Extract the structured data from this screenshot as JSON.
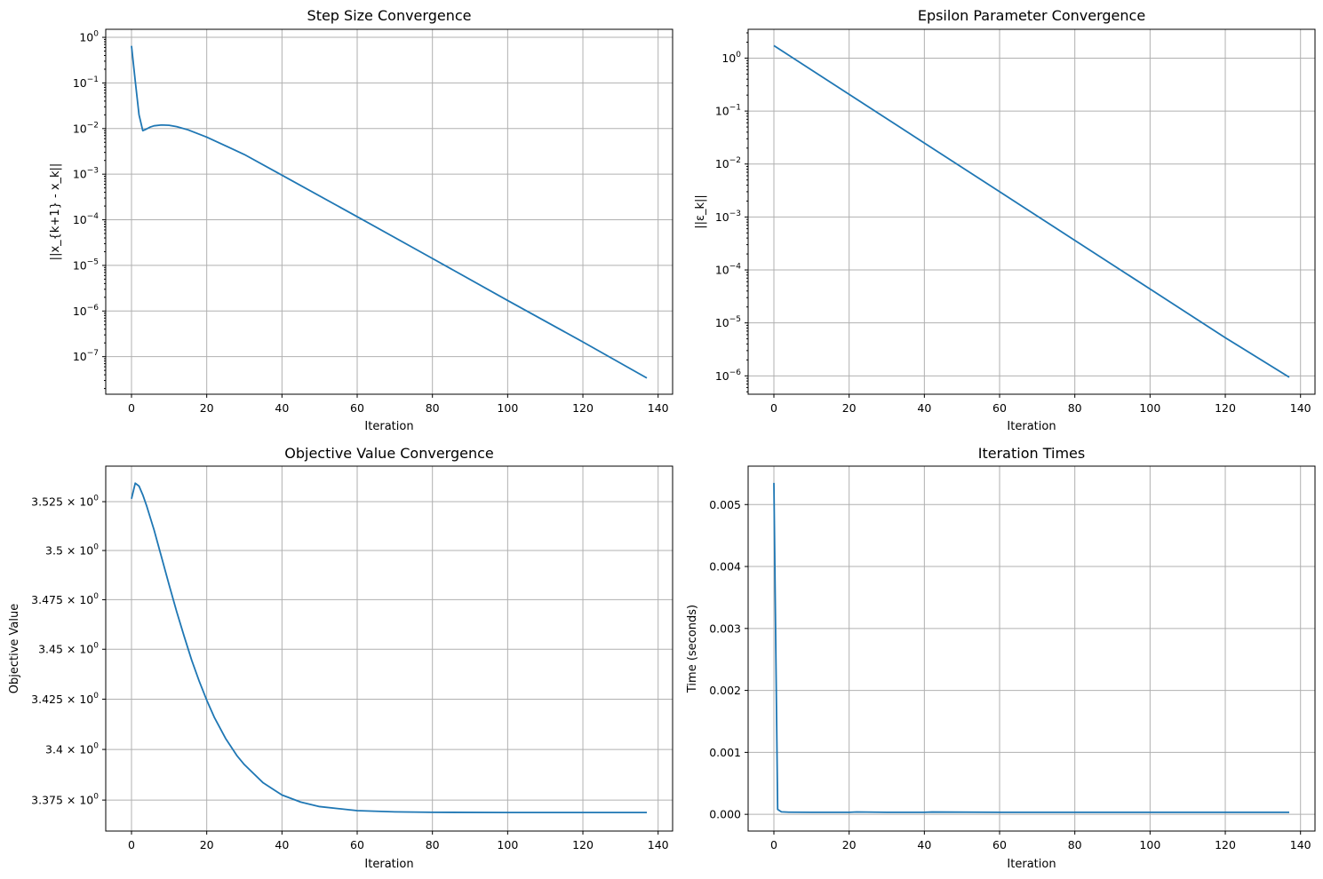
{
  "chart_data": [
    {
      "id": "step",
      "type": "line",
      "title": "Step Size Convergence",
      "xlabel": "Iteration",
      "ylabel": "||x_{k+1} - x_k||",
      "yscale": "log",
      "grid": true,
      "xlim": [
        -6.85,
        143.85
      ],
      "ylim": [
        1.5e-08,
        1.5
      ],
      "xticks": [
        0,
        20,
        40,
        60,
        80,
        100,
        120,
        140
      ],
      "xtick_labels": [
        "0",
        "20",
        "40",
        "60",
        "80",
        "100",
        "120",
        "140"
      ],
      "yticks": [
        1,
        0.1,
        0.01,
        0.001,
        0.0001,
        1e-05,
        1e-06,
        1e-07
      ],
      "ytick_labels": [
        {
          "base": "10",
          "exp": "0"
        },
        {
          "base": "10",
          "exp": "−1"
        },
        {
          "base": "10",
          "exp": "−2"
        },
        {
          "base": "10",
          "exp": "−3"
        },
        {
          "base": "10",
          "exp": "−4"
        },
        {
          "base": "10",
          "exp": "−5"
        },
        {
          "base": "10",
          "exp": "−6"
        },
        {
          "base": "10",
          "exp": "−7"
        }
      ],
      "series": [
        {
          "color": "#1f77b4",
          "x": [
            0,
            1,
            2,
            3,
            4,
            5,
            6,
            8,
            10,
            12,
            15,
            20,
            30,
            40,
            60,
            80,
            100,
            120,
            137
          ],
          "y": [
            0.65,
            0.11,
            0.02,
            0.009,
            0.0098,
            0.0108,
            0.0115,
            0.012,
            0.0118,
            0.011,
            0.0094,
            0.0065,
            0.0027,
            0.00095,
            0.000117,
            1.42e-05,
            1.7e-06,
            2.1e-07,
            3.4e-08
          ]
        }
      ]
    },
    {
      "id": "eps",
      "type": "line",
      "title": "Epsilon Parameter Convergence",
      "xlabel": "Iteration",
      "ylabel": "||ε_k||",
      "yscale": "log",
      "grid": true,
      "xlim": [
        -6.85,
        143.85
      ],
      "ylim": [
        4.5e-07,
        3.5
      ],
      "xticks": [
        0,
        20,
        40,
        60,
        80,
        100,
        120,
        140
      ],
      "xtick_labels": [
        "0",
        "20",
        "40",
        "60",
        "80",
        "100",
        "120",
        "140"
      ],
      "yticks": [
        1,
        0.1,
        0.01,
        0.001,
        0.0001,
        1e-05,
        1e-06
      ],
      "ytick_labels": [
        {
          "base": "10",
          "exp": "0"
        },
        {
          "base": "10",
          "exp": "−1"
        },
        {
          "base": "10",
          "exp": "−2"
        },
        {
          "base": "10",
          "exp": "−3"
        },
        {
          "base": "10",
          "exp": "−4"
        },
        {
          "base": "10",
          "exp": "−5"
        },
        {
          "base": "10",
          "exp": "−6"
        }
      ],
      "series": [
        {
          "color": "#1f77b4",
          "x": [
            0,
            20,
            40,
            60,
            80,
            100,
            120,
            137
          ],
          "y": [
            1.72,
            0.207,
            0.0249,
            0.003,
            0.000362,
            4.36e-05,
            5.25e-06,
            9.4e-07
          ]
        }
      ]
    },
    {
      "id": "obj",
      "type": "line",
      "title": "Objective Value Convergence",
      "xlabel": "Iteration",
      "ylabel": "Objective Value",
      "yscale": "log",
      "grid": true,
      "xlim": [
        -6.85,
        143.85
      ],
      "ylim": [
        3.3598,
        3.5433
      ],
      "xticks": [
        0,
        20,
        40,
        60,
        80,
        100,
        120,
        140
      ],
      "xtick_labels": [
        "0",
        "20",
        "40",
        "60",
        "80",
        "100",
        "120",
        "140"
      ],
      "yticks": [
        3.525,
        3.5,
        3.475,
        3.45,
        3.425,
        3.4,
        3.375
      ],
      "ytick_labels": [
        {
          "base": "3.525 × 10",
          "exp": "0"
        },
        {
          "base": "3.5 × 10",
          "exp": "0"
        },
        {
          "base": "3.475 × 10",
          "exp": "0"
        },
        {
          "base": "3.45 × 10",
          "exp": "0"
        },
        {
          "base": "3.425 × 10",
          "exp": "0"
        },
        {
          "base": "3.4 × 10",
          "exp": "0"
        },
        {
          "base": "3.375 × 10",
          "exp": "0"
        }
      ],
      "series": [
        {
          "color": "#1f77b4",
          "x": [
            0,
            1,
            2,
            3,
            4,
            6,
            8,
            10,
            12,
            14,
            16,
            18,
            20,
            22,
            25,
            28,
            30,
            35,
            40,
            45,
            50,
            60,
            70,
            80,
            100,
            120,
            137
          ],
          "y": [
            3.5265,
            3.5345,
            3.533,
            3.5285,
            3.523,
            3.5105,
            3.4965,
            3.4825,
            3.469,
            3.4565,
            3.4445,
            3.434,
            3.4245,
            3.416,
            3.4055,
            3.397,
            3.3925,
            3.3835,
            3.3775,
            3.374,
            3.3718,
            3.3698,
            3.3692,
            3.369,
            3.3689,
            3.3689,
            3.3689
          ]
        }
      ]
    },
    {
      "id": "time",
      "type": "line",
      "title": "Iteration Times",
      "xlabel": "Iteration",
      "ylabel": "Time (seconds)",
      "yscale": "linear",
      "grid": true,
      "xlim": [
        -6.85,
        143.85
      ],
      "ylim": [
        -0.00027,
        0.00562
      ],
      "xticks": [
        0,
        20,
        40,
        60,
        80,
        100,
        120,
        140
      ],
      "xtick_labels": [
        "0",
        "20",
        "40",
        "60",
        "80",
        "100",
        "120",
        "140"
      ],
      "yticks": [
        0,
        0.001,
        0.002,
        0.003,
        0.004,
        0.005
      ],
      "ytick_labels": [
        {
          "base": "0.000",
          "exp": ""
        },
        {
          "base": "0.001",
          "exp": ""
        },
        {
          "base": "0.002",
          "exp": ""
        },
        {
          "base": "0.003",
          "exp": ""
        },
        {
          "base": "0.004",
          "exp": ""
        },
        {
          "base": "0.005",
          "exp": ""
        }
      ],
      "series": [
        {
          "color": "#1f77b4",
          "x": [
            0,
            1,
            2,
            4,
            10,
            20,
            22,
            30,
            40,
            42,
            60,
            80,
            100,
            120,
            137
          ],
          "y": [
            0.00535,
            8e-05,
            4e-05,
            3.5e-05,
            3.3e-05,
            3.3e-05,
            3.8e-05,
            3.3e-05,
            3.3e-05,
            3.7e-05,
            3.3e-05,
            3.3e-05,
            3.3e-05,
            3.3e-05,
            3.3e-05
          ]
        }
      ]
    }
  ]
}
